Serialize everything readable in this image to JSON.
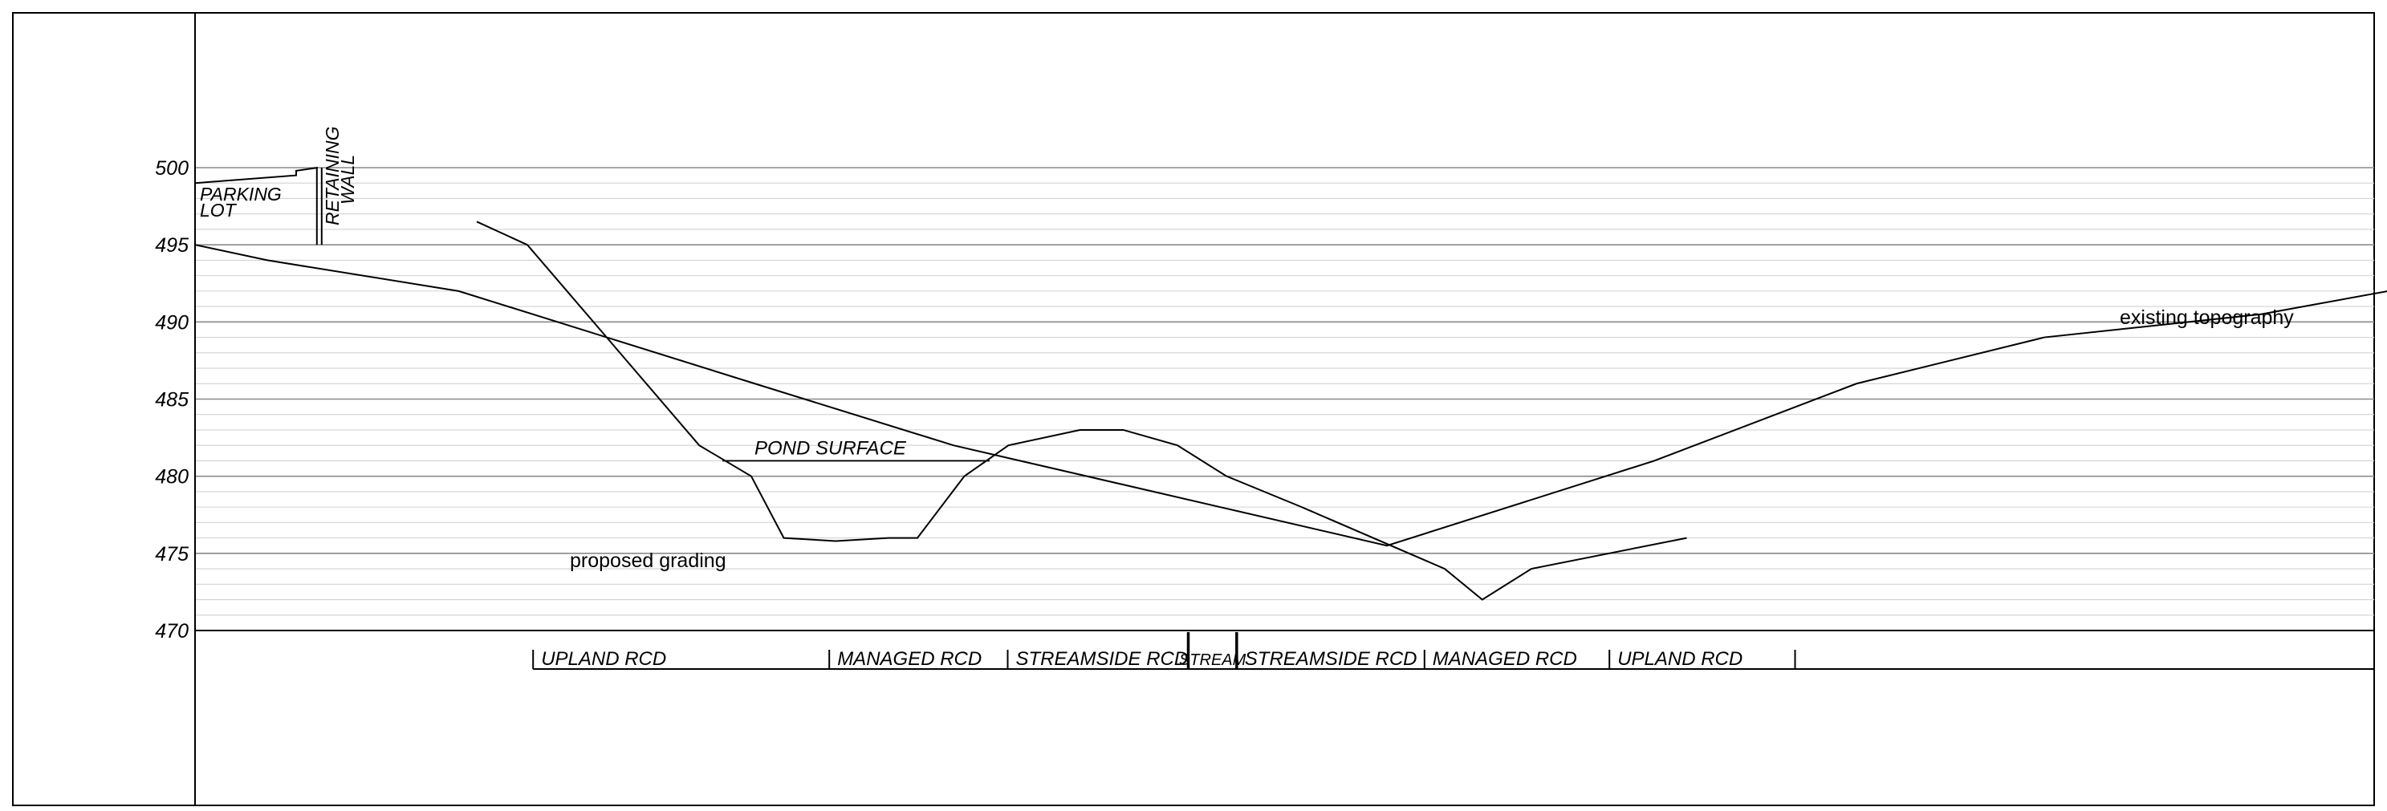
{
  "chart_data": {
    "type": "line",
    "y_axis": {
      "min": 470,
      "max": 500,
      "tick_labels": [
        "500",
        "495",
        "490",
        "485",
        "480",
        "475",
        "470"
      ],
      "major_step": 5,
      "minor_step": 1
    },
    "grid": true,
    "series": [
      {
        "name": "existing topography",
        "points": [
          [
            0,
            495
          ],
          [
            100,
            494
          ],
          [
            365,
            492
          ],
          [
            775,
            486
          ],
          [
            1050,
            482
          ],
          [
            1650,
            475.5
          ],
          [
            2020,
            481
          ],
          [
            2300,
            486
          ],
          [
            2560,
            489
          ],
          [
            2860,
            490.5
          ],
          [
            3036,
            492
          ]
        ]
      },
      {
        "name": "proposed grading",
        "points": [
          [
            390,
            496.5
          ],
          [
            460,
            495
          ],
          [
            698,
            482
          ],
          [
            770,
            480
          ],
          [
            815,
            476
          ],
          [
            887,
            475.8
          ],
          [
            960,
            476
          ],
          [
            1000,
            476
          ],
          [
            1065,
            480
          ],
          [
            1126,
            482
          ],
          [
            1225,
            483
          ],
          [
            1285,
            483
          ],
          [
            1360,
            482
          ],
          [
            1428,
            480
          ],
          [
            1532,
            478
          ],
          [
            1730,
            474
          ],
          [
            1782,
            472
          ],
          [
            1850,
            474
          ],
          [
            2065,
            476
          ]
        ]
      }
    ],
    "features": {
      "pond_surface": {
        "label": "POND  SURFACE",
        "elevation": 481,
        "x_start": 730,
        "x_end": 1100
      },
      "parking_lot": {
        "label_line1": "PARKING",
        "label_line2": "LOT",
        "points": [
          [
            0,
            499
          ],
          [
            140,
            499.5
          ],
          [
            140,
            499.8
          ],
          [
            170,
            500
          ]
        ]
      },
      "retaining_wall": {
        "label_line1": "RETAINING",
        "label_line2": "WALL",
        "x": 172,
        "top": 500,
        "bottom": 495
      }
    },
    "zones": [
      {
        "label": "UPLAND  RCD",
        "start": 468,
        "end": 878
      },
      {
        "label": "MANAGED  RCD",
        "start": 878,
        "end": 1125
      },
      {
        "label": "STREAMSIDE  RCD",
        "start": 1125,
        "end": 1375
      },
      {
        "label": "STREAM",
        "start": 1375,
        "end": 1442
      },
      {
        "label": "STREAMSIDE  RCD",
        "start": 1442,
        "end": 1702
      },
      {
        "label": "MANAGED  RCD",
        "start": 1702,
        "end": 1958
      },
      {
        "label": "UPLAND  RCD",
        "start": 1958,
        "end": 2215
      }
    ],
    "annotations": {
      "existing": "existing topography",
      "proposed": "proposed grading"
    }
  }
}
